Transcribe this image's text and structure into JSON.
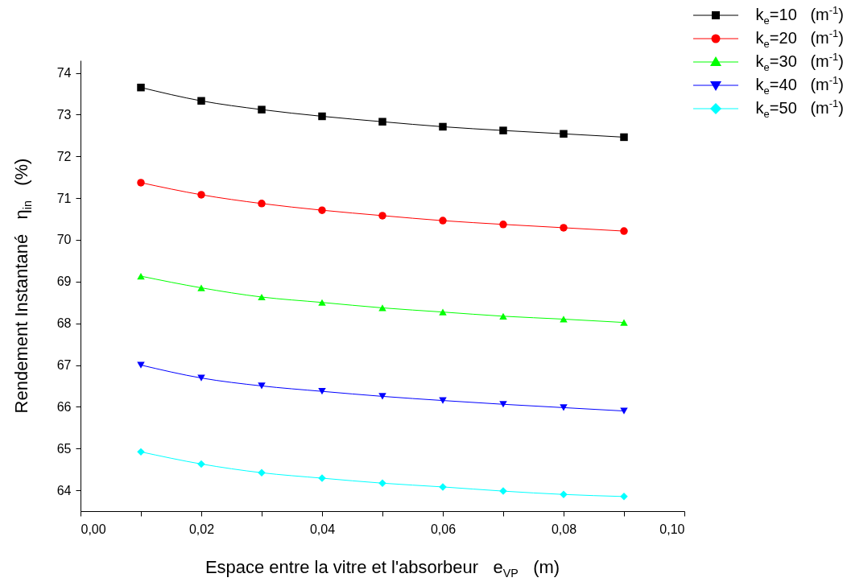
{
  "chart_data": {
    "type": "line",
    "xlabel": "Espace entre la vitre et l'absorbeur   e$_{VP}$   (m)",
    "ylabel": "Rendement Instantané   η$_{in}$   (%)",
    "x": [
      0.01,
      0.02,
      0.03,
      0.04,
      0.05,
      0.06,
      0.07,
      0.08,
      0.09
    ],
    "series": [
      {
        "name": "k$_{e}$=10   (m$^{-1}$)",
        "color": "#000000",
        "marker": "square",
        "values": [
          73.65,
          73.33,
          73.12,
          72.96,
          72.83,
          72.71,
          72.62,
          72.54,
          72.46
        ]
      },
      {
        "name": "k$_{e}$=20   (m$^{-1}$)",
        "color": "#ff0000",
        "marker": "circle",
        "values": [
          71.37,
          71.08,
          70.87,
          70.71,
          70.58,
          70.46,
          70.37,
          70.29,
          70.21
        ]
      },
      {
        "name": "k$_{e}$=30   (m$^{-1}$)",
        "color": "#00ff00",
        "marker": "triangle",
        "values": [
          69.13,
          68.85,
          68.63,
          68.5,
          68.37,
          68.27,
          68.17,
          68.1,
          68.02
        ]
      },
      {
        "name": "k$_{e}$=40   (m$^{-1}$)",
        "color": "#0000ff",
        "marker": "triangle-down",
        "values": [
          67.0,
          66.69,
          66.5,
          66.37,
          66.25,
          66.15,
          66.06,
          65.98,
          65.9
        ]
      },
      {
        "name": "k$_{e}$=50   (m$^{-1}$)",
        "color": "#00ffff",
        "marker": "diamond",
        "values": [
          64.92,
          64.63,
          64.42,
          64.29,
          64.17,
          64.08,
          63.98,
          63.9,
          63.85
        ]
      }
    ],
    "xlim": [
      0,
      0.1
    ],
    "xticks": [
      {
        "value": 0,
        "label": "0,00"
      },
      {
        "value": 0.01,
        "label": null
      },
      {
        "value": 0.02,
        "label": "0,02"
      },
      {
        "value": 0.03,
        "label": null
      },
      {
        "value": 0.04,
        "label": "0,04"
      },
      {
        "value": 0.05,
        "label": null
      },
      {
        "value": 0.06,
        "label": "0,06"
      },
      {
        "value": 0.07,
        "label": null
      },
      {
        "value": 0.08,
        "label": "0,08"
      },
      {
        "value": 0.09,
        "label": null
      },
      {
        "value": 0.1,
        "label": "0,10"
      }
    ],
    "ylim": [
      63.5,
      74.3
    ],
    "yticks": [
      64,
      65,
      66,
      67,
      68,
      69,
      70,
      71,
      72,
      73,
      74
    ],
    "legend": "top right",
    "grid": false,
    "line_style": "solid"
  }
}
